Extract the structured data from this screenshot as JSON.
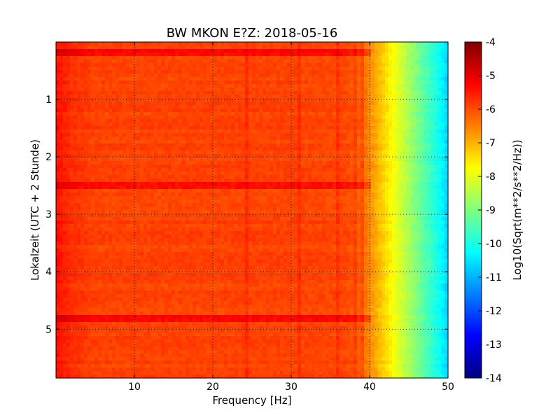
{
  "chart_data": {
    "type": "heatmap",
    "title": "BW MKON E?Z: 2018-05-16",
    "xlabel": "Frequency [Hz]",
    "ylabel": "Lokalzeit (UTC + 2 Stunde)",
    "xlim": [
      0,
      50
    ],
    "ylim": [
      5.85,
      0
    ],
    "x_ticks": [
      "10",
      "20",
      "30",
      "40",
      "50"
    ],
    "y_ticks": [
      "1",
      "2",
      "3",
      "4",
      "5"
    ],
    "grid": true,
    "colorbar": {
      "label": "Log10(Sqrt(m**2/s**2/Hz))",
      "range": [
        -14,
        -4
      ],
      "ticks": [
        "-4",
        "-5",
        "-6",
        "-7",
        "-8",
        "-9",
        "-10",
        "-11",
        "-12",
        "-13",
        "-14"
      ],
      "colormap": "jet"
    },
    "spectrum_profile": {
      "frequency_hz": [
        0,
        2,
        5,
        10,
        20,
        30,
        37,
        39,
        40,
        41,
        42,
        43,
        44,
        45,
        46,
        47,
        48,
        49,
        50
      ],
      "log10_amplitude": [
        -5.4,
        -5.7,
        -5.9,
        -5.9,
        -5.9,
        -5.9,
        -5.95,
        -6.2,
        -6.6,
        -7.0,
        -7.4,
        -7.8,
        -8.2,
        -8.6,
        -9.0,
        -9.4,
        -9.8,
        -10.2,
        -10.7
      ]
    },
    "high_amplitude_bands_hours": [
      0.2,
      2.5,
      4.8
    ],
    "spectral_lines_hz": [
      24.5,
      31,
      36,
      38,
      39
    ]
  }
}
